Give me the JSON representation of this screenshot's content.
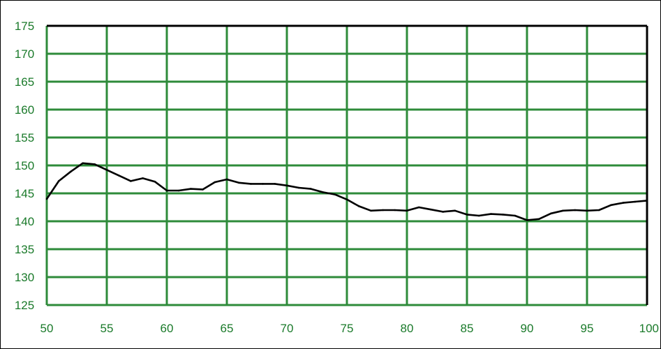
{
  "chart_data": {
    "type": "line",
    "title": "",
    "xlabel": "",
    "ylabel": "",
    "xlim": [
      50,
      100
    ],
    "ylim": [
      125,
      175
    ],
    "x_ticks": [
      50,
      55,
      60,
      65,
      70,
      75,
      80,
      85,
      90,
      95,
      100
    ],
    "y_ticks": [
      125,
      130,
      135,
      140,
      145,
      150,
      155,
      160,
      165,
      170,
      175
    ],
    "x_gridlines": [
      50,
      55,
      60,
      65,
      70,
      75,
      80,
      85,
      90,
      95,
      100
    ],
    "y_gridlines": [
      125,
      130,
      135,
      140,
      145,
      150,
      155,
      160,
      165,
      170,
      175
    ],
    "grid": true,
    "legend": "none",
    "colors": {
      "grid": "#2e8b3a",
      "tick_label": "#1a7a2a",
      "line": "#000000",
      "frame": "#000000"
    },
    "series": [
      {
        "x": [
          50,
          51,
          52,
          53,
          54,
          55,
          56,
          57,
          58,
          59,
          60,
          61,
          62,
          63,
          64,
          65,
          66,
          67,
          68,
          69,
          70,
          71,
          72,
          73,
          74,
          75,
          76,
          77,
          78,
          79,
          80,
          81,
          82,
          83,
          84,
          85,
          86,
          87,
          88,
          89,
          90,
          91,
          92,
          93,
          94,
          95,
          96,
          97,
          98,
          99,
          100
        ],
        "values": [
          144.0,
          147.2,
          148.9,
          150.4,
          150.2,
          149.2,
          148.2,
          147.2,
          147.7,
          147.1,
          145.5,
          145.5,
          145.8,
          145.7,
          147.0,
          147.5,
          146.9,
          146.7,
          146.7,
          146.7,
          146.4,
          146.0,
          145.8,
          145.2,
          144.8,
          143.9,
          142.7,
          141.9,
          142.0,
          142.0,
          141.9,
          142.5,
          142.1,
          141.7,
          141.9,
          141.2,
          141.0,
          141.3,
          141.2,
          141.0,
          140.2,
          140.4,
          141.4,
          141.9,
          142.0,
          141.9,
          142.0,
          142.9,
          143.3,
          143.5,
          143.7
        ]
      }
    ]
  }
}
